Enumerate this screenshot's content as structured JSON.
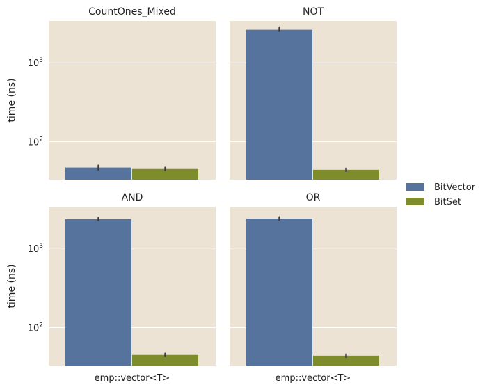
{
  "chart_data": {
    "type": "bar",
    "scale": "log",
    "ylabel": "time (ns)",
    "xtick_label": "emp::vector<T>",
    "legend": [
      "BitVector",
      "BitSet"
    ],
    "colors": {
      "BitVector": "#55739d",
      "BitSet": "#7f8c2c",
      "panel_bg": "#ede3d4"
    },
    "yticks": [
      {
        "base": "10",
        "exp": "2",
        "value": 100
      },
      {
        "base": "10",
        "exp": "3",
        "value": 1000
      }
    ],
    "ylim": [
      33,
      3400
    ],
    "panels": [
      {
        "title": "CountOnes_Mixed",
        "series": [
          {
            "name": "BitVector",
            "value": 47,
            "err": [
              44,
              50
            ]
          },
          {
            "name": "BitSet",
            "value": 45,
            "err": [
              43,
              47
            ]
          }
        ]
      },
      {
        "title": "NOT",
        "series": [
          {
            "name": "BitVector",
            "value": 2630,
            "err": [
              2520,
              2780
            ]
          },
          {
            "name": "BitSet",
            "value": 44,
            "err": [
              42,
              46
            ]
          }
        ]
      },
      {
        "title": "AND",
        "series": [
          {
            "name": "BitVector",
            "value": 2370,
            "err": [
              2280,
              2470
            ]
          },
          {
            "name": "BitSet",
            "value": 45,
            "err": [
              43,
              47
            ]
          }
        ]
      },
      {
        "title": "OR",
        "series": [
          {
            "name": "BitVector",
            "value": 2400,
            "err": [
              2300,
              2520
            ]
          },
          {
            "name": "BitSet",
            "value": 44,
            "err": [
              42,
              46
            ]
          }
        ]
      }
    ]
  }
}
